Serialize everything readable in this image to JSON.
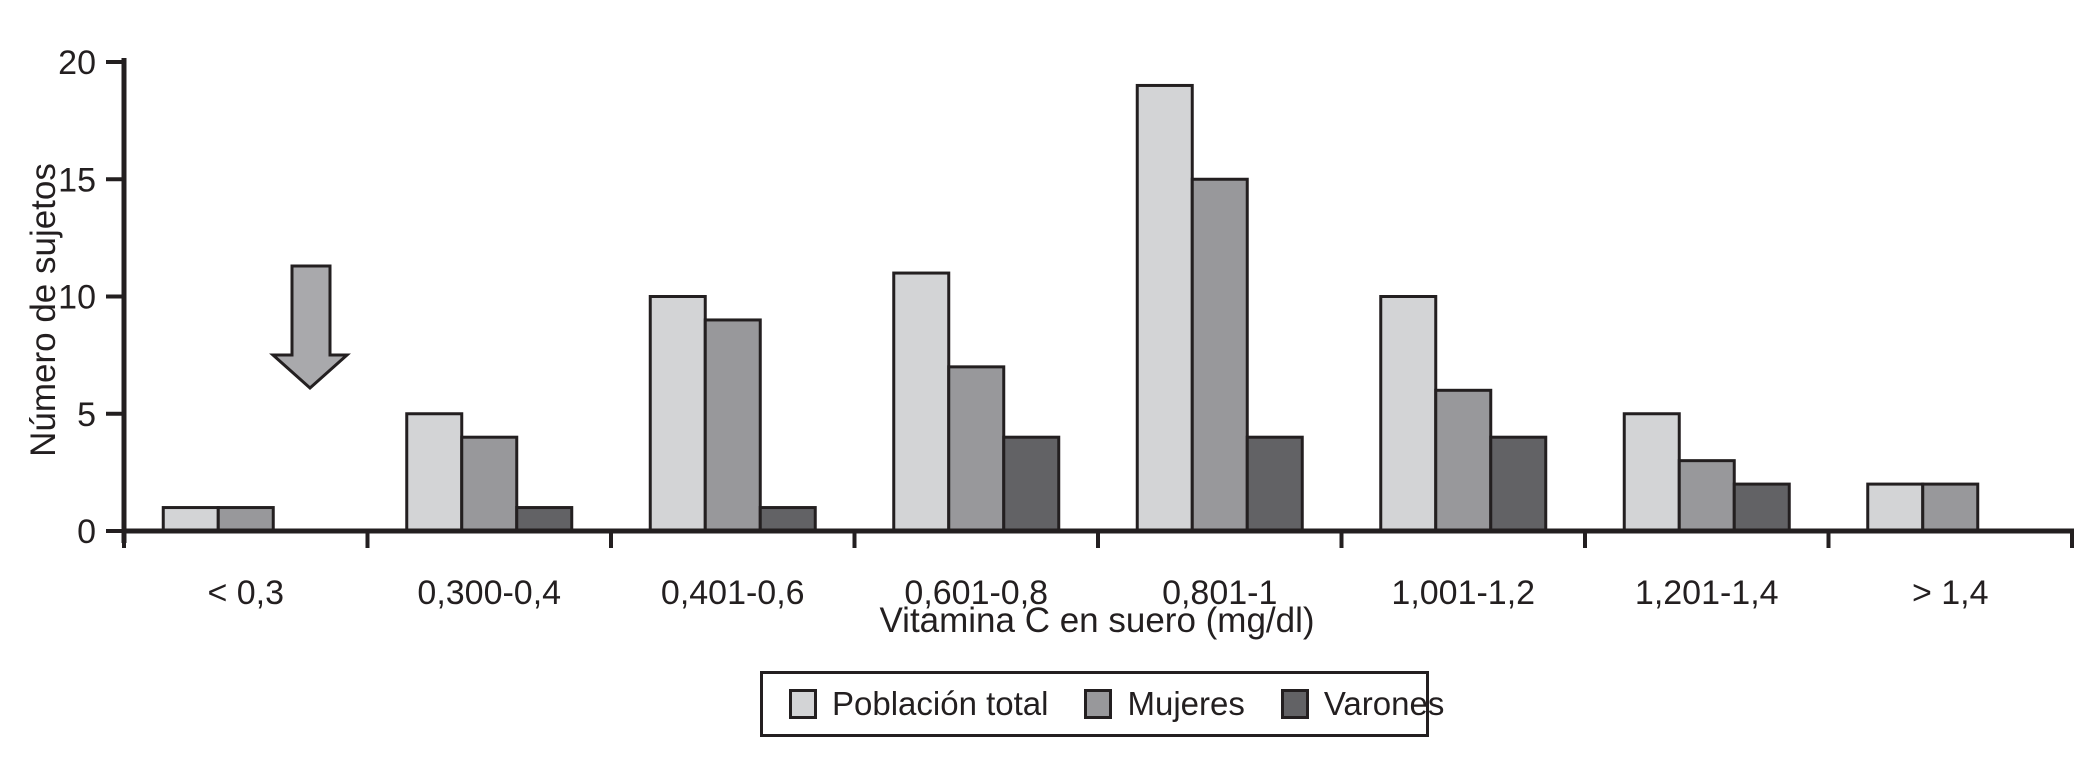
{
  "chart_data": {
    "type": "bar",
    "title": "",
    "xlabel": "Vitamina C en suero (mg/dl)",
    "ylabel": "Número de sujetos",
    "categories": [
      "< 0,3",
      "0,300-0,4",
      "0,401-0,6",
      "0,601-0,8",
      "0,801-1",
      "1,001-1,2",
      "1,201-1,4",
      "> 1,4"
    ],
    "series": [
      {
        "name": "Población total",
        "color": "#d3d4d6",
        "values": [
          1,
          5,
          10,
          11,
          19,
          10,
          5,
          2
        ]
      },
      {
        "name": "Mujeres",
        "color": "#98989b",
        "values": [
          1,
          4,
          9,
          7,
          15,
          6,
          3,
          2
        ]
      },
      {
        "name": "Varones",
        "color": "#626265",
        "values": [
          0,
          1,
          1,
          4,
          4,
          4,
          2,
          0
        ]
      }
    ],
    "ylim": [
      0,
      20
    ],
    "yticks": [
      0,
      5,
      10,
      15,
      20
    ],
    "grid": false,
    "legend_position": "bottom",
    "axis_color": "#231f20",
    "annotation": {
      "icon": "down-arrow-icon",
      "color": "#a9a9ac"
    }
  }
}
